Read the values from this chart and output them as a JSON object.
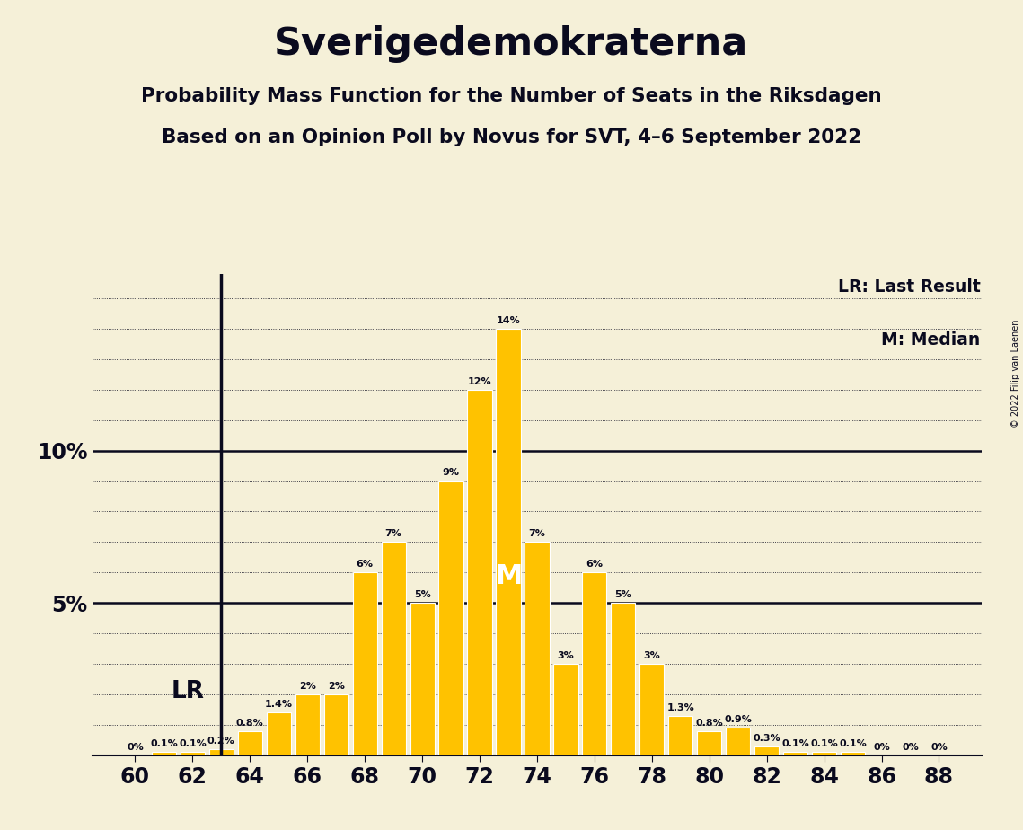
{
  "title": "Sverigedemokraterna",
  "subtitle1": "Probability Mass Function for the Number of Seats in the Riksdagen",
  "subtitle2": "Based on an Opinion Poll by Novus for SVT, 4–6 September 2022",
  "copyright": "© 2022 Filip van Laenen",
  "seats": [
    60,
    61,
    62,
    63,
    64,
    65,
    66,
    67,
    68,
    69,
    70,
    71,
    72,
    73,
    74,
    75,
    76,
    77,
    78,
    79,
    80,
    81,
    82,
    83,
    84,
    85,
    86,
    87,
    88
  ],
  "probabilities": [
    0.0,
    0.1,
    0.1,
    0.2,
    0.8,
    1.4,
    2.0,
    2.0,
    6.0,
    7.0,
    5.0,
    9.0,
    12.0,
    14.0,
    7.0,
    3.0,
    6.0,
    5.0,
    3.0,
    1.3,
    0.8,
    0.9,
    0.3,
    0.1,
    0.1,
    0.1,
    0.0,
    0.0,
    0.0
  ],
  "bar_color": "#FFC200",
  "background_color": "#F5F0D8",
  "text_color": "#0a0a1e",
  "lr_seat": 63,
  "median_seat": 73,
  "lr_label": "LR",
  "median_label": "M",
  "legend_lr": "LR: Last Result",
  "legend_m": "M: Median",
  "bar_width": 0.85,
  "ylim": [
    0,
    15.8
  ],
  "xlim": [
    58.5,
    89.5
  ]
}
